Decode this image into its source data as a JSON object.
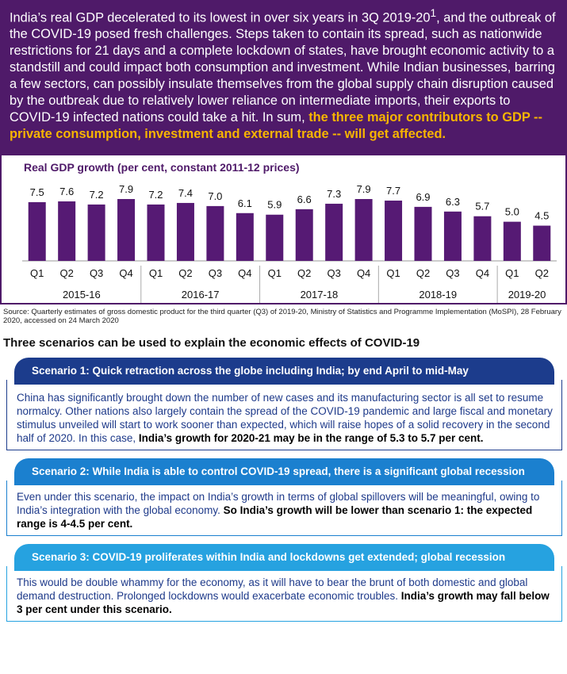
{
  "intro": {
    "text": "India’s real GDP decelerated to its lowest in over six years in 3Q 2019-20",
    "sup": "1",
    "text_after": ", and the outbreak of the COVID-19 posed fresh challenges. Steps taken to contain its spread, such as nationwide restrictions for 21 days and a complete lockdown of states, have brought economic activity to a standstill and could impact both consumption and investment. While Indian businesses, barring a few sectors, can possibly insulate themselves from the global supply chain disruption caused by the outbreak due to relatively lower reliance on intermediate imports, their exports to COVID-19 infected nations could take a hit. In sum, ",
    "highlight": "the three major contributors to GDP -- private consumption, investment and external trade -- will get affected."
  },
  "chart_data": {
    "type": "bar",
    "title": "Real GDP growth (per cent, constant 2011-12 prices)",
    "categories": [
      "Q1",
      "Q2",
      "Q3",
      "Q4",
      "Q1",
      "Q2",
      "Q3",
      "Q4",
      "Q1",
      "Q2",
      "Q3",
      "Q4",
      "Q1",
      "Q2",
      "Q3",
      "Q4",
      "Q1",
      "Q2"
    ],
    "groups": [
      "2015-16",
      "2016-17",
      "2017-18",
      "2018-19",
      "2019-20"
    ],
    "values": [
      7.5,
      7.6,
      7.2,
      7.9,
      7.2,
      7.4,
      7.0,
      6.1,
      5.9,
      6.6,
      7.3,
      7.9,
      7.7,
      6.9,
      6.3,
      5.7,
      5.0,
      4.5
    ],
    "value_labels": [
      "7.5",
      "7.6",
      "7.2",
      "7.9",
      "7.2",
      "7.4",
      "7.0",
      "6.1",
      "5.9",
      "6.6",
      "7.3",
      "7.9",
      "7.7",
      "6.9",
      "6.3",
      "5.7",
      "5.0",
      "4.5"
    ],
    "color": "#561a74"
  },
  "source": "Source: Quarterly estimates of gross domestic product for the third quarter (Q3) of 2019-20, Ministry of Statistics and Programme Implementation (MoSPI), 28 February 2020, accessed on 24 March 2020",
  "heading": "Three scenarios can be used to explain the economic effects of COVID-19",
  "scenarios": [
    {
      "title": "Scenario 1: Quick retraction across the globe including India; by end April to mid-May",
      "body": "China has significantly brought down the number of new cases and its manufacturing sector is all set to resume normalcy. Other nations also largely contain the spread of the COVID-19 pandemic and large fiscal and monetary stimulus unveiled will start to work sooner than expected, which will raise hopes of a solid recovery in the second half of 2020. In this case, ",
      "emphasis": "India’s growth for 2020-21 may be in the range of 5.3 to 5.7 per cent."
    },
    {
      "title": "Scenario 2: While India is able to control COVID-19 spread, there is a significant global recession",
      "body": "Even under this scenario, the impact on India’s growth in terms of global spillovers will be meaningful, owing to India’s integration with the global economy. ",
      "emphasis": "So India’s growth will be lower than scenario 1: the expected range is 4-4.5 per cent."
    },
    {
      "title": "Scenario 3: COVID-19 proliferates within India and lockdowns get extended; global recession",
      "body": "This would be double whammy for the economy, as it will have to bear the brunt of both domestic and global demand destruction. Prolonged lockdowns would exacerbate economic troubles. ",
      "emphasis": "India’s growth may fall below 3 per cent under this scenario."
    }
  ]
}
